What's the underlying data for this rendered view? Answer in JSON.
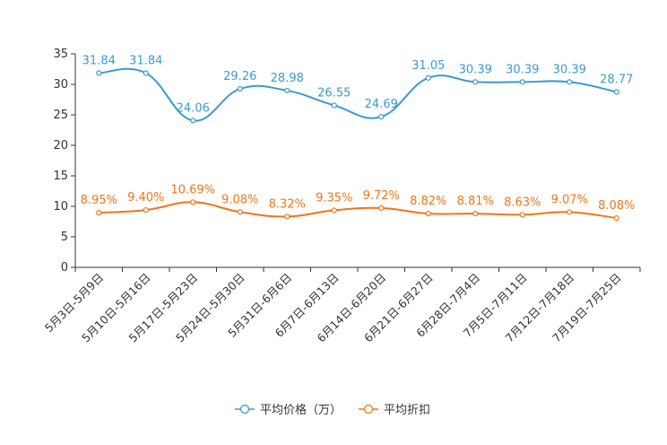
{
  "chart_data": {
    "type": "line",
    "categories": [
      "5月3日-5月9日",
      "5月10日-5月16日",
      "5月17日-5月23日",
      "5月24日-5月30日",
      "5月31日-6月6日",
      "6月7日-6月13日",
      "6月14日-6月20日",
      "6月21日-6月27日",
      "6月28日-7月4日",
      "7月5日-7月11日",
      "7月12日-7月18日",
      "7月19日-7月25日"
    ],
    "ylim": [
      0,
      35
    ],
    "yticks": [
      0,
      5,
      10,
      15,
      20,
      25,
      30,
      35
    ],
    "series": [
      {
        "name": "平均价格（万）",
        "color": "#3a9bd0",
        "values": [
          31.84,
          31.84,
          24.06,
          29.26,
          28.98,
          26.55,
          24.69,
          31.05,
          30.39,
          30.39,
          30.39,
          28.77
        ],
        "labels": [
          "31.84",
          "31.84",
          "24.06",
          "29.26",
          "28.98",
          "26.55",
          "24.69",
          "31.05",
          "30.39",
          "30.39",
          "30.39",
          "28.77"
        ]
      },
      {
        "name": "平均折扣",
        "color": "#f07617",
        "values": [
          8.95,
          9.4,
          10.69,
          9.08,
          8.32,
          9.35,
          9.72,
          8.82,
          8.81,
          8.63,
          9.07,
          8.08
        ],
        "labels": [
          "8.95%",
          "9.40%",
          "10.69%",
          "9.08%",
          "8.32%",
          "9.35%",
          "9.72%",
          "8.82%",
          "8.81%",
          "8.63%",
          "9.07%",
          "8.08%"
        ]
      }
    ],
    "legend_position": "bottom-center",
    "grid": false
  }
}
